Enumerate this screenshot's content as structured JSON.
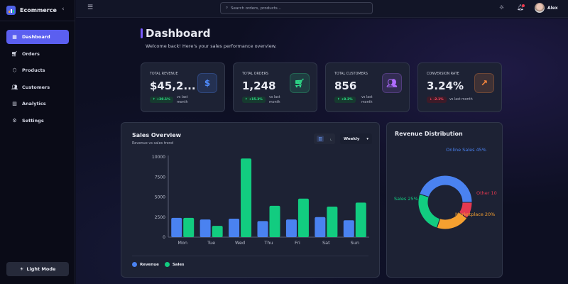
{
  "app": {
    "name": "Ecommerce"
  },
  "sidebar": {
    "items": [
      {
        "label": "Dashboard",
        "icon": "grid-icon",
        "glyph": "▦",
        "active": true
      },
      {
        "label": "Orders",
        "icon": "cart-icon",
        "glyph": "🛒︎"
      },
      {
        "label": "Products",
        "icon": "box-icon",
        "glyph": "⬡"
      },
      {
        "label": "Customers",
        "icon": "users-icon",
        "glyph": "👥︎"
      },
      {
        "label": "Analytics",
        "icon": "bar-chart-icon",
        "glyph": "▥"
      },
      {
        "label": "Settings",
        "icon": "gear-icon",
        "glyph": "⚙"
      }
    ],
    "light_mode": "Light Mode"
  },
  "header": {
    "search_placeholder": "Search orders, products...",
    "user": "Alex"
  },
  "page": {
    "title": "Dashboard",
    "subtitle": "Welcome back! Here's your sales performance overview."
  },
  "stats": [
    {
      "label": "TOTAL REVENUE",
      "value": "$45,2...",
      "change": "↑ +20.1%",
      "trend": "up",
      "vs": "vs last month",
      "icon": "dollar-icon",
      "glyph": "$",
      "color": "#4f8cff"
    },
    {
      "label": "TOTAL ORDERS",
      "value": "1,248",
      "change": "↑ +15.3%",
      "trend": "up",
      "vs": "vs last month",
      "icon": "cart-icon",
      "glyph": "🛒︎",
      "color": "#2ee08a"
    },
    {
      "label": "TOTAL CUSTOMERS",
      "value": "856",
      "change": "↑ +8.2%",
      "trend": "up",
      "vs": "vs last month",
      "icon": "users-icon",
      "glyph": "👥︎",
      "color": "#b06cff"
    },
    {
      "label": "CONVERSION RATE",
      "value": "3.24%",
      "change": "↓ -2.1%",
      "trend": "down",
      "vs": "vs last month",
      "icon": "trending-up-icon",
      "glyph": "↗",
      "color": "#ff8a3d"
    }
  ],
  "sales": {
    "title": "Sales Overview",
    "subtitle": "Revenue vs sales trend",
    "period": "Weekly"
  },
  "distribution": {
    "title": "Revenue Distribution"
  },
  "colors": {
    "revenue": "#4a82f0",
    "sales": "#12cc80",
    "online": "#4a82f0",
    "other": "#e53950",
    "marketplace": "#f5a030",
    "salesSlice": "#12cc80"
  },
  "chart_data": [
    {
      "type": "bar",
      "categories": [
        "Mon",
        "Tue",
        "Wed",
        "Thu",
        "Fri",
        "Sat",
        "Sun"
      ],
      "series": [
        {
          "name": "Revenue",
          "values": [
            2400,
            2200,
            2300,
            2000,
            2200,
            2500,
            2100
          ]
        },
        {
          "name": "Sales",
          "values": [
            2400,
            1400,
            9800,
            3900,
            4800,
            3800,
            4300
          ]
        }
      ],
      "yticks": [
        0,
        2500,
        5000,
        7500,
        10000
      ],
      "ylim": [
        0,
        10000
      ],
      "legend": "bottom-left"
    },
    {
      "type": "pie",
      "donut": true,
      "slices": [
        {
          "label": "Online Sales",
          "value": 45,
          "text": "Online Sales 45%"
        },
        {
          "label": "Other",
          "value": 10,
          "text": "Other 10"
        },
        {
          "label": "Marketplace",
          "value": 20,
          "text": "Marketplace 20%"
        },
        {
          "label": "Sales",
          "value": 25,
          "text": "Sales 25%"
        }
      ]
    }
  ]
}
